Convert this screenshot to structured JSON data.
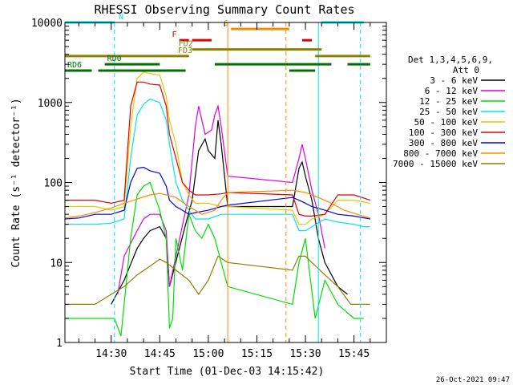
{
  "chart_data": {
    "type": "line",
    "title": "RHESSI Observing Summary Count Rates",
    "xlabel": "Start Time (01-Dec-03 14:15:42)",
    "ylabel": "Count Rate (s⁻¹ detector⁻¹)",
    "x_unit": "UT",
    "x_range": [
      "14:15:42",
      "15:55:00"
    ],
    "ylim": [
      1,
      10000
    ],
    "yscale": "log",
    "x_ticks": [
      "14:30",
      "14:45",
      "15:00",
      "15:15",
      "15:30",
      "15:45"
    ],
    "y_ticks": [
      "1",
      "10",
      "100",
      "1000",
      "10000"
    ],
    "detector_info": [
      "Det 1,3,4,5,6,9,",
      "Att 0"
    ],
    "timestamp": "26-Oct-2021 09:47",
    "series": [
      {
        "name": "3 - 6 keV",
        "color": "#000000",
        "points": [
          [
            "14:30",
            3
          ],
          [
            "14:34",
            6
          ],
          [
            "14:38",
            15
          ],
          [
            "14:40",
            20
          ],
          [
            "14:42",
            25
          ],
          [
            "14:45",
            28
          ],
          [
            "14:47",
            20
          ],
          [
            "14:48",
            5
          ],
          [
            "14:53",
            30
          ],
          [
            "14:55",
            60
          ],
          [
            "14:57",
            250
          ],
          [
            "14:59",
            350
          ],
          [
            "15:00",
            250
          ],
          [
            "15:02",
            200
          ],
          [
            "15:03",
            600
          ],
          [
            "15:04",
            300
          ],
          [
            "15:06",
            50
          ],
          [
            "15:26",
            50
          ],
          [
            "15:28",
            150
          ],
          [
            "15:29",
            180
          ],
          [
            "15:30",
            120
          ],
          [
            "15:32",
            60
          ],
          [
            "15:34",
            20
          ],
          [
            "15:36",
            10
          ],
          [
            "15:40",
            5
          ],
          [
            "15:43",
            4
          ]
        ]
      },
      {
        "name": "6 - 12 keV",
        "color": "#dd00dd",
        "points": [
          [
            "14:32",
            4
          ],
          [
            "14:34",
            12
          ],
          [
            "14:38",
            25
          ],
          [
            "14:40",
            35
          ],
          [
            "14:42",
            40
          ],
          [
            "14:45",
            40
          ],
          [
            "14:47",
            25
          ],
          [
            "14:48",
            5
          ],
          [
            "14:54",
            70
          ],
          [
            "14:56",
            500
          ],
          [
            "14:57",
            900
          ],
          [
            "14:59",
            400
          ],
          [
            "15:01",
            450
          ],
          [
            "15:02",
            700
          ],
          [
            "15:03",
            900
          ],
          [
            "15:04",
            500
          ],
          [
            "15:06",
            120
          ],
          [
            "15:26",
            100
          ],
          [
            "15:28",
            200
          ],
          [
            "15:29",
            300
          ],
          [
            "15:30",
            200
          ],
          [
            "15:32",
            80
          ],
          [
            "15:34",
            40
          ],
          [
            "15:36",
            15
          ]
        ]
      },
      {
        "name": "12 - 25 keV",
        "color": "#00dd00",
        "points": [
          [
            "14:15:42",
            2
          ],
          [
            "14:20",
            2
          ],
          [
            "14:24",
            2
          ],
          [
            "14:28",
            2
          ],
          [
            "14:31",
            2
          ],
          [
            "14:33",
            1.2
          ],
          [
            "14:36",
            20
          ],
          [
            "14:38",
            70
          ],
          [
            "14:40",
            90
          ],
          [
            "14:42",
            100
          ],
          [
            "14:45",
            45
          ],
          [
            "14:47",
            20
          ],
          [
            "14:48",
            1.5
          ],
          [
            "14:49",
            2
          ],
          [
            "14:50",
            20
          ],
          [
            "14:52",
            8
          ],
          [
            "14:54",
            40
          ],
          [
            "14:56",
            25
          ],
          [
            "14:58",
            20
          ],
          [
            "15:00",
            30
          ],
          [
            "15:02",
            20
          ],
          [
            "15:04",
            10
          ],
          [
            "15:06",
            5
          ],
          [
            "15:26",
            3
          ],
          [
            "15:28",
            10
          ],
          [
            "15:30",
            20
          ],
          [
            "15:33",
            2
          ],
          [
            "15:36",
            6
          ],
          [
            "15:40",
            3
          ],
          [
            "15:45",
            2
          ],
          [
            "15:48",
            2
          ]
        ]
      },
      {
        "name": "25 - 50 keV",
        "color": "#00e5e5",
        "points": [
          [
            "14:15:42",
            30
          ],
          [
            "14:20",
            30
          ],
          [
            "14:25",
            30
          ],
          [
            "14:30",
            31
          ],
          [
            "14:34",
            35
          ],
          [
            "14:36",
            200
          ],
          [
            "14:38",
            700
          ],
          [
            "14:40",
            950
          ],
          [
            "14:42",
            1100
          ],
          [
            "14:45",
            1000
          ],
          [
            "14:47",
            600
          ],
          [
            "14:48",
            300
          ],
          [
            "14:50",
            100
          ],
          [
            "14:52",
            60
          ],
          [
            "14:54",
            45
          ],
          [
            "14:56",
            35
          ],
          [
            "15:00",
            35
          ],
          [
            "15:04",
            40
          ],
          [
            "15:06",
            40
          ],
          [
            "15:26",
            40
          ],
          [
            "15:28",
            25
          ],
          [
            "15:30",
            25
          ],
          [
            "15:32",
            28
          ],
          [
            "15:36",
            35
          ],
          [
            "15:40",
            32
          ],
          [
            "15:45",
            30
          ],
          [
            "15:48",
            28
          ],
          [
            "15:50",
            28
          ]
        ]
      },
      {
        "name": "50 - 100 keV",
        "color": "#e5c800",
        "points": [
          [
            "14:15:42",
            50
          ],
          [
            "14:20",
            50
          ],
          [
            "14:25",
            50
          ],
          [
            "14:30",
            45
          ],
          [
            "14:34",
            50
          ],
          [
            "14:36",
            500
          ],
          [
            "14:38",
            2000
          ],
          [
            "14:40",
            2400
          ],
          [
            "14:42",
            2300
          ],
          [
            "14:45",
            2200
          ],
          [
            "14:47",
            1200
          ],
          [
            "14:48",
            600
          ],
          [
            "14:50",
            300
          ],
          [
            "14:52",
            100
          ],
          [
            "14:54",
            70
          ],
          [
            "14:56",
            55
          ],
          [
            "15:00",
            55
          ],
          [
            "15:04",
            50
          ],
          [
            "15:06",
            50
          ],
          [
            "15:26",
            45
          ],
          [
            "15:28",
            30
          ],
          [
            "15:30",
            30
          ],
          [
            "15:32",
            35
          ],
          [
            "15:36",
            40
          ],
          [
            "15:40",
            60
          ],
          [
            "15:45",
            60
          ],
          [
            "15:50",
            55
          ]
        ]
      },
      {
        "name": "100 - 300 keV",
        "color": "#e00000",
        "points": [
          [
            "14:15:42",
            60
          ],
          [
            "14:20",
            60
          ],
          [
            "14:25",
            60
          ],
          [
            "14:30",
            55
          ],
          [
            "14:34",
            60
          ],
          [
            "14:36",
            900
          ],
          [
            "14:38",
            1800
          ],
          [
            "14:40",
            1800
          ],
          [
            "14:42",
            1700
          ],
          [
            "14:45",
            1650
          ],
          [
            "14:47",
            900
          ],
          [
            "14:48",
            400
          ],
          [
            "14:50",
            200
          ],
          [
            "14:52",
            100
          ],
          [
            "14:54",
            80
          ],
          [
            "14:56",
            70
          ],
          [
            "15:00",
            70
          ],
          [
            "15:04",
            72
          ],
          [
            "15:06",
            75
          ],
          [
            "15:26",
            70
          ],
          [
            "15:28",
            40
          ],
          [
            "15:30",
            38
          ],
          [
            "15:32",
            38
          ],
          [
            "15:36",
            40
          ],
          [
            "15:40",
            70
          ],
          [
            "15:45",
            70
          ],
          [
            "15:50",
            60
          ]
        ]
      },
      {
        "name": "300 - 800 keV",
        "color": "#0000dd",
        "points": [
          [
            "14:15:42",
            35
          ],
          [
            "14:20",
            36
          ],
          [
            "14:25",
            40
          ],
          [
            "14:30",
            40
          ],
          [
            "14:34",
            45
          ],
          [
            "14:36",
            100
          ],
          [
            "14:38",
            150
          ],
          [
            "14:40",
            155
          ],
          [
            "14:42",
            140
          ],
          [
            "14:45",
            130
          ],
          [
            "14:47",
            90
          ],
          [
            "14:48",
            60
          ],
          [
            "14:50",
            50
          ],
          [
            "14:52",
            45
          ],
          [
            "14:54",
            40
          ],
          [
            "14:56",
            42
          ],
          [
            "15:00",
            45
          ],
          [
            "15:04",
            50
          ],
          [
            "15:06",
            52
          ],
          [
            "15:26",
            65
          ],
          [
            "15:28",
            60
          ],
          [
            "15:30",
            55
          ],
          [
            "15:32",
            50
          ],
          [
            "15:36",
            45
          ],
          [
            "15:40",
            40
          ],
          [
            "15:45",
            38
          ],
          [
            "15:50",
            35
          ]
        ]
      },
      {
        "name": "800 - 7000 keV",
        "color": "#ff8800",
        "points": [
          [
            "14:15:42",
            36
          ],
          [
            "14:20",
            38
          ],
          [
            "14:25",
            42
          ],
          [
            "14:30",
            48
          ],
          [
            "14:34",
            55
          ],
          [
            "14:38",
            62
          ],
          [
            "14:42",
            70
          ],
          [
            "14:45",
            73
          ],
          [
            "14:47",
            70
          ],
          [
            "14:50",
            65
          ],
          [
            "14:54",
            50
          ],
          [
            "14:58",
            40
          ],
          [
            "15:02",
            45
          ],
          [
            "15:04",
            60
          ],
          [
            "15:06",
            75
          ],
          [
            "15:26",
            80
          ],
          [
            "15:30",
            75
          ],
          [
            "15:34",
            65
          ],
          [
            "15:38",
            55
          ],
          [
            "15:42",
            45
          ],
          [
            "15:46",
            40
          ],
          [
            "15:50",
            36
          ]
        ]
      },
      {
        "name": "7000 - 15000 keV",
        "color": "#8b8000",
        "points": [
          [
            "14:15:42",
            3
          ],
          [
            "14:20",
            3
          ],
          [
            "14:25",
            3
          ],
          [
            "14:30",
            4
          ],
          [
            "14:34",
            5
          ],
          [
            "14:38",
            7
          ],
          [
            "14:42",
            9
          ],
          [
            "14:45",
            11
          ],
          [
            "14:47",
            10
          ],
          [
            "14:50",
            8
          ],
          [
            "14:54",
            6
          ],
          [
            "14:57",
            4
          ],
          [
            "15:00",
            6
          ],
          [
            "15:03",
            12
          ],
          [
            "15:06",
            10
          ],
          [
            "15:26",
            8
          ],
          [
            "15:28",
            12
          ],
          [
            "15:30",
            12
          ],
          [
            "15:32",
            10
          ],
          [
            "15:36",
            7
          ],
          [
            "15:40",
            5
          ],
          [
            "15:44",
            3
          ],
          [
            "15:50",
            3
          ]
        ]
      }
    ],
    "state_bars": [
      {
        "label": "N",
        "color": "#00e5e5",
        "level": 10000,
        "segments": [
          [
            "14:15:42",
            "14:31"
          ],
          [
            "15:35",
            "15:48"
          ]
        ]
      },
      {
        "label": "S",
        "color": "#ff8800",
        "level": 8300,
        "segments": [
          [
            "15:07",
            "15:25"
          ]
        ]
      },
      {
        "label": "F",
        "color": "#e00000",
        "level": 6000,
        "segments": [
          [
            "14:51",
            "14:54"
          ],
          [
            "14:55",
            "15:01"
          ],
          [
            "15:29",
            "15:32"
          ]
        ]
      },
      {
        "label": "FD2",
        "color": "#8b8000",
        "level": 4600,
        "segments": [
          [
            "14:55",
            "15:35"
          ]
        ]
      },
      {
        "label": "FD3",
        "color": "#8b8000",
        "level": 3800,
        "segments": [
          [
            "14:15:42",
            "14:54"
          ],
          [
            "15:33",
            "15:50"
          ]
        ]
      },
      {
        "label": "RD0",
        "color": "#007000",
        "level": 3000,
        "segments": [
          [
            "14:28",
            "14:45"
          ],
          [
            "15:02",
            "15:38"
          ],
          [
            "15:43",
            "15:50"
          ]
        ]
      },
      {
        "label": "RD6",
        "color": "#007000",
        "level": 2500,
        "segments": [
          [
            "14:15:42",
            "14:24"
          ],
          [
            "14:26",
            "14:53"
          ],
          [
            "15:25",
            "15:33"
          ]
        ]
      }
    ],
    "markers": [
      {
        "time": "14:31",
        "color": "#00e5e5",
        "style": "dashed"
      },
      {
        "time": "15:06",
        "color": "#ff8800",
        "style": "solid"
      },
      {
        "time": "15:24",
        "color": "#ff8800",
        "style": "dashed"
      },
      {
        "time": "15:34",
        "color": "#00e5e5",
        "style": "solid"
      },
      {
        "time": "15:47",
        "color": "#00e5e5",
        "style": "dashed"
      }
    ]
  }
}
